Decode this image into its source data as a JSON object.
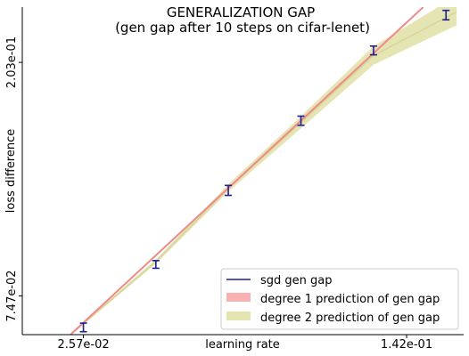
{
  "chart_data": {
    "type": "line",
    "title": "GENERALIZATION GAP",
    "subtitle": "(gen gap after 10 steps on cifar-lenet)",
    "xlabel": "learning rate",
    "ylabel": "loss difference",
    "xscale": "log",
    "yscale": "log",
    "xticks": [
      0.0257,
      0.142
    ],
    "xtick_labels": [
      "2.57e-02",
      "1.42e-01"
    ],
    "yticks": [
      0.0747,
      0.203
    ],
    "ytick_labels": [
      "7.47e-02",
      "2.03e-01"
    ],
    "xlim": [
      0.0186,
      0.192
    ],
    "ylim": [
      0.0633,
      0.2572
    ],
    "grid": false,
    "legend_position": "bottom-right",
    "colors": {
      "sgd": "#1f1f8f",
      "degree1": "#f08a8a",
      "degree1_legend": "#f8b0b0",
      "degree2": "#e4e4b0",
      "degree2_line": "#d6d69a"
    },
    "series": [
      {
        "name": "sgd gen gap",
        "kind": "errorbar",
        "x": [
          0.0257,
          0.0377,
          0.0553,
          0.0812,
          0.1192,
          0.1749
        ],
        "y": [
          0.0653,
          0.0855,
          0.1174,
          0.1582,
          0.2137,
          0.2486
        ],
        "err": [
          0.0012,
          0.0014,
          0.0025,
          0.0031,
          0.004,
          0.005
        ]
      },
      {
        "name": "degree 1 prediction of gen gap",
        "kind": "line",
        "x": [
          0.024,
          0.155
        ],
        "y": [
          0.0633,
          0.2572
        ]
      },
      {
        "name": "degree 2 prediction of gen gap",
        "kind": "band",
        "x": [
          0.024,
          0.0377,
          0.0553,
          0.0812,
          0.1192,
          0.185
        ],
        "y": [
          0.0633,
          0.0865,
          0.1185,
          0.157,
          0.209,
          0.252
        ],
        "y_low": [
          0.0631,
          0.0858,
          0.1168,
          0.153,
          0.201,
          0.238
        ],
        "y_high": [
          0.0636,
          0.0873,
          0.1205,
          0.1612,
          0.2175,
          0.27
        ]
      }
    ]
  }
}
